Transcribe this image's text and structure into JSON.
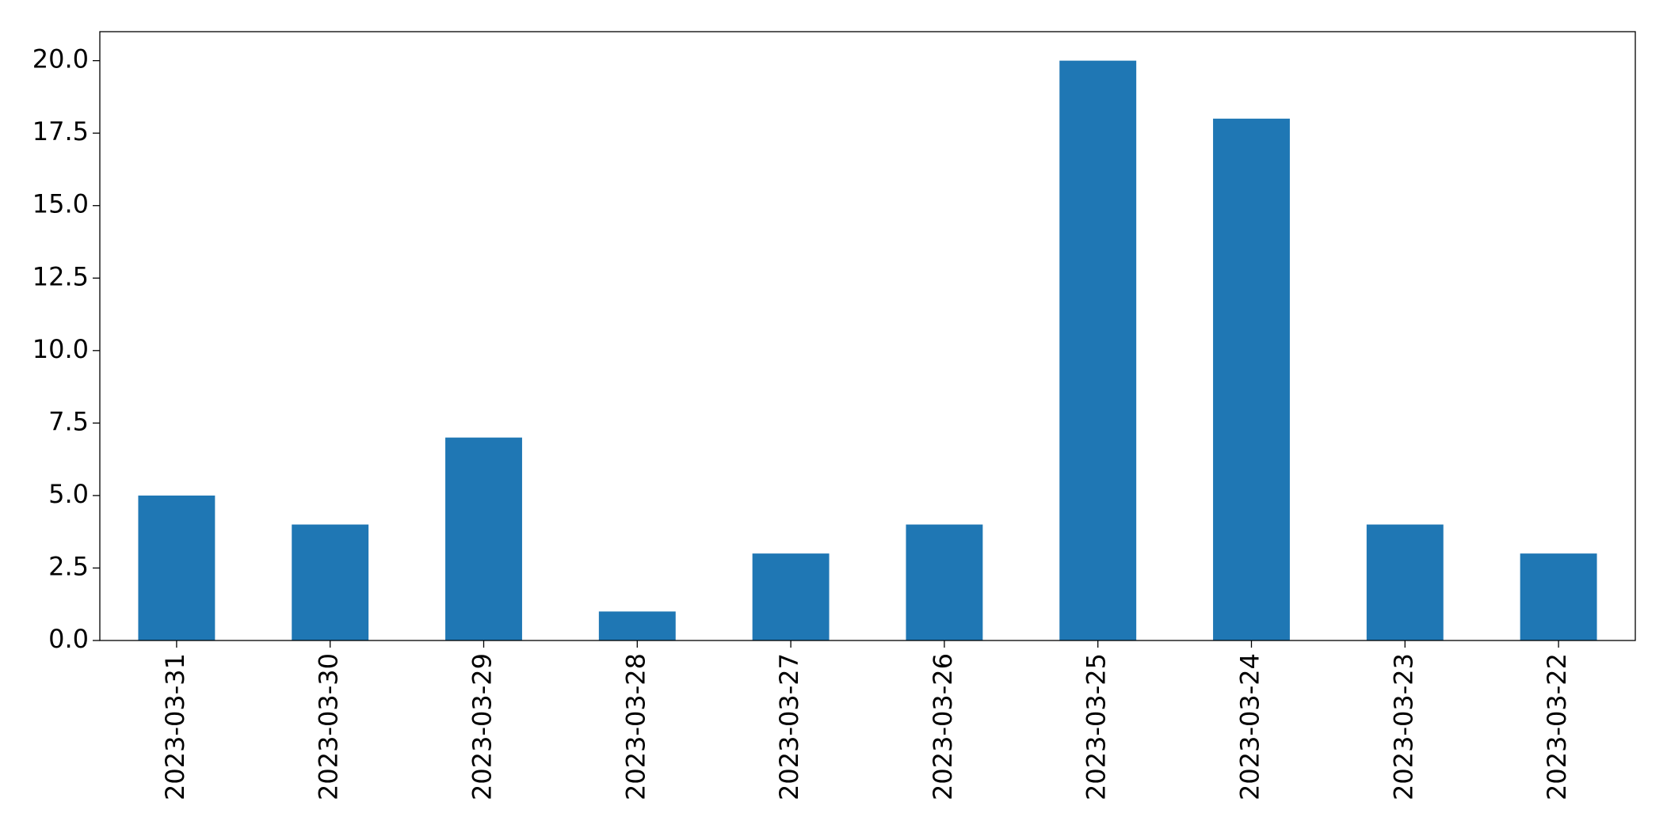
{
  "chart_data": {
    "type": "bar",
    "categories": [
      "2023-03-31",
      "2023-03-30",
      "2023-03-29",
      "2023-03-28",
      "2023-03-27",
      "2023-03-26",
      "2023-03-25",
      "2023-03-24",
      "2023-03-23",
      "2023-03-22"
    ],
    "values": [
      5,
      4,
      7,
      1,
      3,
      4,
      20,
      18,
      4,
      3
    ],
    "color": "#1f77b4",
    "ylim": [
      0,
      21
    ],
    "yticks": [
      {
        "value": 0,
        "label": "0.0"
      },
      {
        "value": 2.5,
        "label": "2.5"
      },
      {
        "value": 5,
        "label": "5.0"
      },
      {
        "value": 7.5,
        "label": "7.5"
      },
      {
        "value": 10,
        "label": "10.0"
      },
      {
        "value": 12.5,
        "label": "12.5"
      },
      {
        "value": 15,
        "label": "15.0"
      },
      {
        "value": 17.5,
        "label": "17.5"
      },
      {
        "value": 20,
        "label": "20.0"
      }
    ],
    "grid": false
  }
}
